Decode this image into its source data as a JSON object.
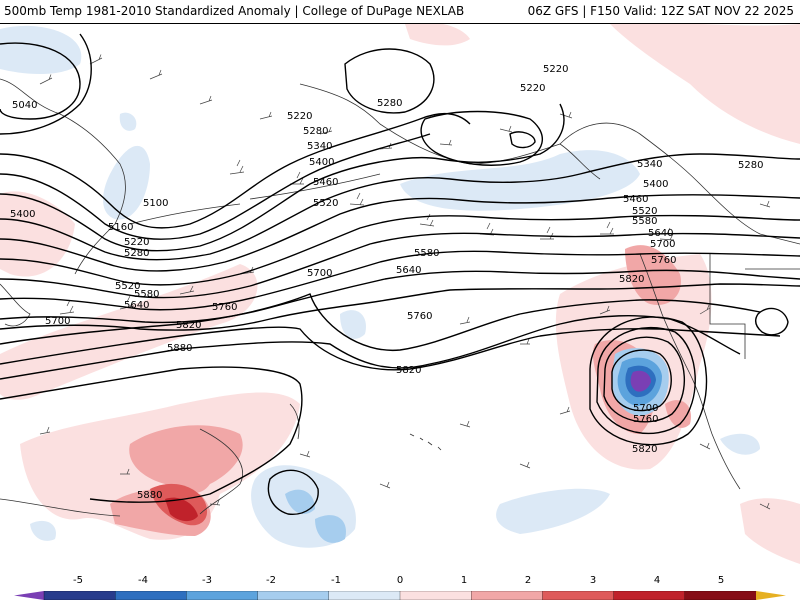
{
  "header": {
    "title_left": "500mb Temp 1981-2010 Standardized Anomaly | College of DuPage NEXLAB",
    "title_right": "06Z GFS | F150 Valid: 12Z SAT NOV 22 2025"
  },
  "contours": {
    "labels": [
      "5040",
      "5100",
      "5160",
      "5220",
      "5280",
      "5340",
      "5400",
      "5460",
      "5520",
      "5580",
      "5640",
      "5700",
      "5760",
      "5820",
      "5880"
    ]
  },
  "colorbar": {
    "ticks": [
      "-5",
      "-4",
      "-3",
      "-2",
      "-1",
      "0",
      "1",
      "2",
      "3",
      "4",
      "5"
    ],
    "colors": [
      "#7a3fb4",
      "#283c8c",
      "#2e6fbf",
      "#5ca3dd",
      "#a6cdee",
      "#dce9f6",
      "#fbe0e0",
      "#f1a7a7",
      "#de5a5a",
      "#c0222b",
      "#860d16",
      "#e6b022"
    ]
  },
  "map_labels": [
    {
      "id": "l5040a",
      "text": "5040"
    },
    {
      "id": "l5100a",
      "text": "5100"
    },
    {
      "id": "l5160a",
      "text": "5160"
    },
    {
      "id": "l5220a",
      "text": "5220"
    },
    {
      "id": "l5280a",
      "text": "5280"
    },
    {
      "id": "l5220b",
      "text": "5220"
    },
    {
      "id": "l5280b",
      "text": "5280"
    },
    {
      "id": "l5340a",
      "text": "5340"
    },
    {
      "id": "l5400a",
      "text": "5400"
    },
    {
      "id": "l5460a",
      "text": "5460"
    },
    {
      "id": "l5520a",
      "text": "5520"
    },
    {
      "id": "l5220c",
      "text": "5220"
    },
    {
      "id": "l5220d",
      "text": "5220"
    },
    {
      "id": "l5280c",
      "text": "5280"
    },
    {
      "id": "l5400b",
      "text": "5400"
    },
    {
      "id": "l5520b",
      "text": "5520"
    },
    {
      "id": "l5580a",
      "text": "5580"
    },
    {
      "id": "l5640a",
      "text": "5640"
    },
    {
      "id": "l5700a",
      "text": "5700"
    },
    {
      "id": "l5700b",
      "text": "5700"
    },
    {
      "id": "l5640b",
      "text": "5640"
    },
    {
      "id": "l5580b",
      "text": "5580"
    },
    {
      "id": "l5760a",
      "text": "5760"
    },
    {
      "id": "l5820a",
      "text": "5820"
    },
    {
      "id": "l5880a",
      "text": "5880"
    },
    {
      "id": "l5760b",
      "text": "5760"
    },
    {
      "id": "l5820b",
      "text": "5820"
    },
    {
      "id": "l5340b",
      "text": "5340"
    },
    {
      "id": "l5400c",
      "text": "5400"
    },
    {
      "id": "l5460b",
      "text": "5460"
    },
    {
      "id": "l5520c",
      "text": "5520"
    },
    {
      "id": "l5580c",
      "text": "5580"
    },
    {
      "id": "l5640c",
      "text": "5640"
    },
    {
      "id": "l5700c",
      "text": "5700"
    },
    {
      "id": "l5760c",
      "text": "5760"
    },
    {
      "id": "l5820c",
      "text": "5820"
    },
    {
      "id": "l5280d",
      "text": "5280"
    },
    {
      "id": "l5700d",
      "text": "5700"
    },
    {
      "id": "l5760d",
      "text": "5760"
    },
    {
      "id": "l5820d",
      "text": "5820"
    },
    {
      "id": "l5880b",
      "text": "5880"
    }
  ]
}
